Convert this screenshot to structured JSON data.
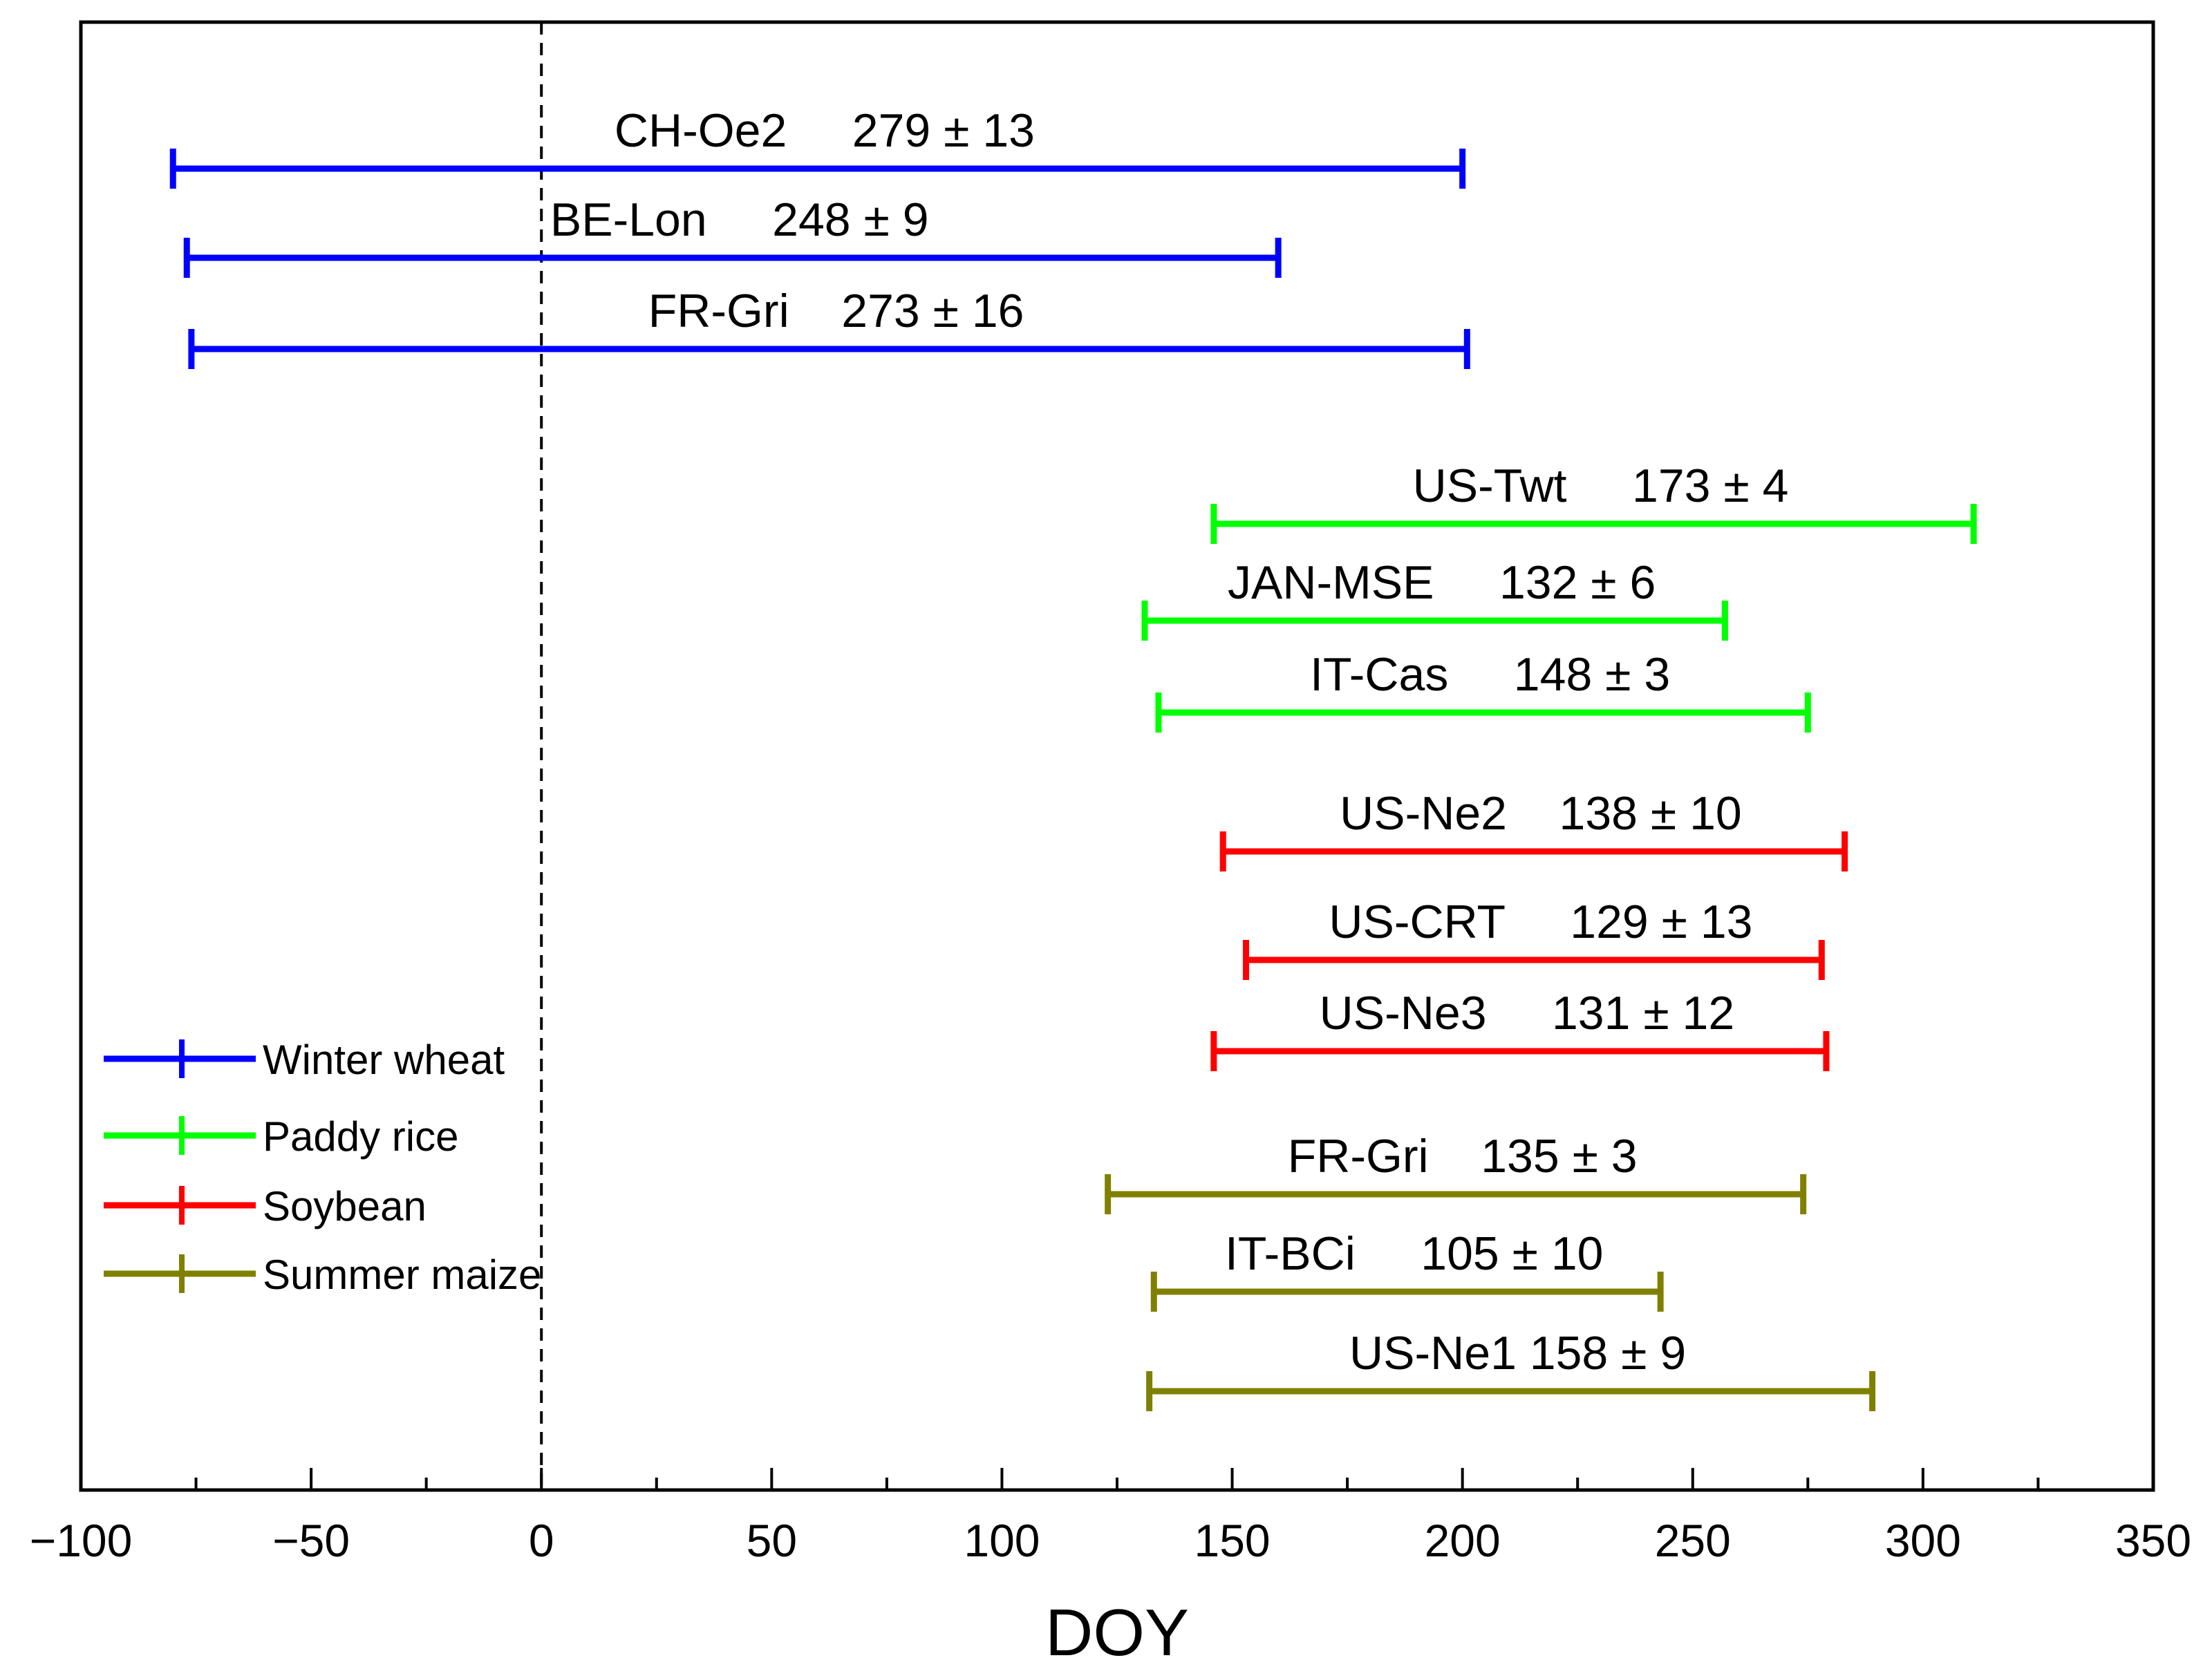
{
  "chart_data": {
    "type": "range",
    "xlabel": "DOY",
    "xlim": [
      -100,
      350
    ],
    "xticks": [
      -100,
      -50,
      0,
      50,
      100,
      150,
      200,
      250,
      300,
      350
    ],
    "xtick_labels": [
      "−100",
      "−50",
      "0",
      "50",
      "100",
      "150",
      "200",
      "250",
      "300",
      "350"
    ],
    "reference_line": {
      "x": 0,
      "style": "dashed"
    },
    "legend_position": "bottom-left",
    "series": [
      {
        "name": "Winter wheat",
        "color": "#0000ff",
        "items": [
          {
            "site": "CH-Oe2",
            "label": "CH-Oe2     279 ± 13",
            "start": -80,
            "end": 200
          },
          {
            "site": "BE-Lon",
            "label": "BE-Lon     248 ± 9",
            "start": -77,
            "end": 160
          },
          {
            "site": "FR-Gri",
            "label": "FR-Gri    273 ± 16",
            "start": -76,
            "end": 201
          }
        ]
      },
      {
        "name": "Paddy rice",
        "color": "#00ff00",
        "items": [
          {
            "site": "US-Twt",
            "label": "US-Twt     173 ± 4",
            "start": 146,
            "end": 311
          },
          {
            "site": "JAN-MSE",
            "label": "JAN-MSE     132 ± 6",
            "start": 131,
            "end": 257
          },
          {
            "site": "IT-Cas",
            "label": "IT-Cas     148 ± 3",
            "start": 134,
            "end": 275
          }
        ]
      },
      {
        "name": "Soybean",
        "color": "#ff0000",
        "items": [
          {
            "site": "US-Ne2",
            "label": "US-Ne2    138 ± 10",
            "start": 148,
            "end": 283
          },
          {
            "site": "US-CRT",
            "label": "US-CRT     129 ± 13",
            "start": 153,
            "end": 278
          },
          {
            "site": "US-Ne3",
            "label": "US-Ne3     131 ± 12",
            "start": 146,
            "end": 279
          }
        ]
      },
      {
        "name": "Summer maize",
        "color": "#808000",
        "items": [
          {
            "site": "FR-Gri",
            "label": "FR-Gri    135 ± 3",
            "start": 123,
            "end": 274
          },
          {
            "site": "IT-BCi",
            "label": "IT-BCi     105 ± 10",
            "start": 133,
            "end": 243
          },
          {
            "site": "US-Ne1",
            "label": "US-Ne1 158 ± 9",
            "start": 132,
            "end": 289
          }
        ]
      }
    ]
  }
}
